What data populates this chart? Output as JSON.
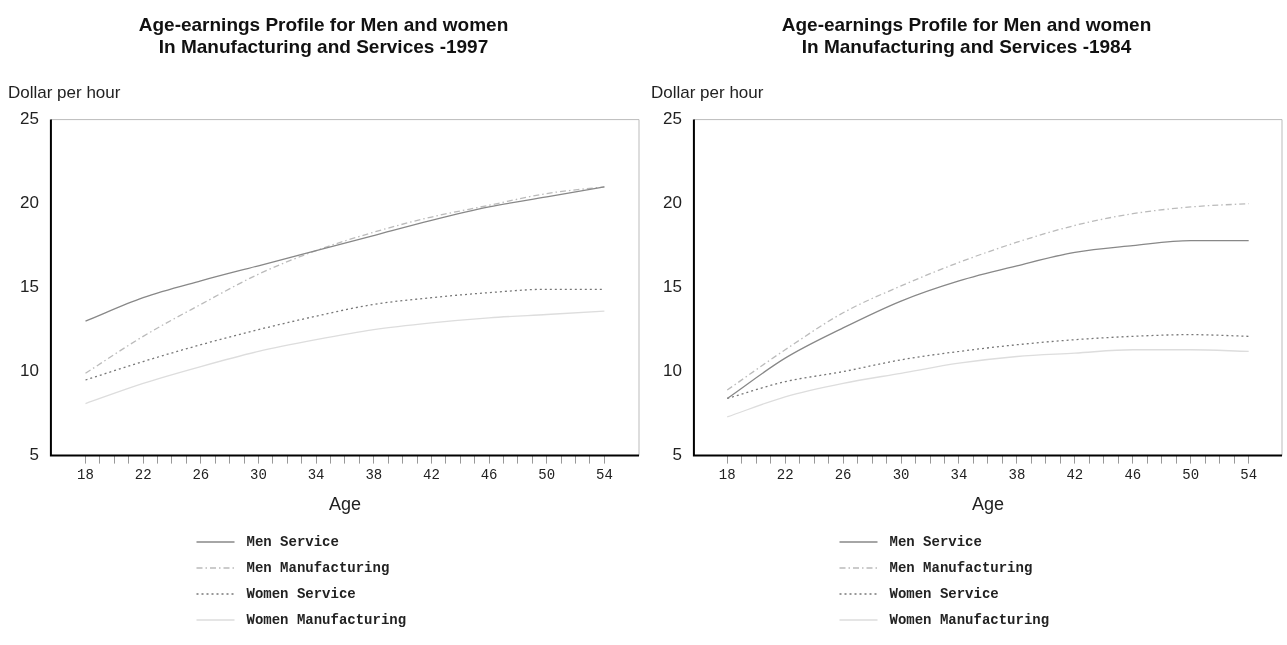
{
  "chart_data": [
    {
      "type": "line",
      "title": "Age-earnings Profile for Men and women\nIn Manufacturing and Services -1997",
      "xlabel": "Age",
      "ylabel": "Dollar per hour",
      "x": [
        18,
        22,
        26,
        30,
        34,
        38,
        42,
        46,
        50,
        54
      ],
      "series": [
        {
          "name": "Men Service",
          "color": "#888888",
          "line_style": "solid",
          "values": [
            13.0,
            14.4,
            15.4,
            16.3,
            17.2,
            18.1,
            19.0,
            19.8,
            20.4,
            21.0
          ]
        },
        {
          "name": "Men Manufacturing",
          "color": "#bbbbbb",
          "line_style": "dashed",
          "values": [
            9.9,
            12.1,
            14.0,
            15.8,
            17.2,
            18.3,
            19.2,
            19.9,
            20.6,
            21.0
          ]
        },
        {
          "name": "Women Service",
          "color": "#777777",
          "line_style": "dotted",
          "values": [
            9.5,
            10.6,
            11.6,
            12.5,
            13.3,
            14.0,
            14.4,
            14.7,
            14.9,
            14.9
          ]
        },
        {
          "name": "Women Manufacturing",
          "color": "#dddddd",
          "line_style": "solid",
          "values": [
            8.1,
            9.3,
            10.3,
            11.2,
            11.9,
            12.5,
            12.9,
            13.2,
            13.4,
            13.6
          ]
        }
      ],
      "xlim": [
        15.6,
        56.4
      ],
      "xticks": [
        18,
        {
          "value": 19,
          "label": null
        },
        {
          "value": 20,
          "label": null
        },
        {
          "value": 21,
          "label": null
        },
        22,
        {
          "value": 23,
          "label": null
        },
        {
          "value": 24,
          "label": null
        },
        {
          "value": 25,
          "label": null
        },
        26,
        {
          "value": 27,
          "label": null
        },
        {
          "value": 28,
          "label": null
        },
        {
          "value": 29,
          "label": null
        },
        30,
        {
          "value": 31,
          "label": null
        },
        {
          "value": 32,
          "label": null
        },
        {
          "value": 33,
          "label": null
        },
        34,
        {
          "value": 35,
          "label": null
        },
        {
          "value": 36,
          "label": null
        },
        {
          "value": 37,
          "label": null
        },
        38,
        {
          "value": 39,
          "label": null
        },
        {
          "value": 40,
          "label": null
        },
        {
          "value": 41,
          "label": null
        },
        42,
        {
          "value": 43,
          "label": null
        },
        {
          "value": 44,
          "label": null
        },
        {
          "value": 45,
          "label": null
        },
        46,
        {
          "value": 47,
          "label": null
        },
        {
          "value": 48,
          "label": null
        },
        {
          "value": 49,
          "label": null
        },
        50,
        {
          "value": 51,
          "label": null
        },
        {
          "value": 52,
          "label": null
        },
        {
          "value": 53,
          "label": null
        },
        54
      ],
      "ylim": [
        5,
        25
      ],
      "yticks": [
        5,
        10,
        15,
        20,
        25
      ],
      "grid": false,
      "legend": "bottom",
      "marker": "none"
    },
    {
      "type": "line",
      "title": "Age-earnings Profile for Men and women\nIn Manufacturing and Services -1984",
      "xlabel": "Age",
      "ylabel": "Dollar per hour",
      "x": [
        18,
        22,
        26,
        30,
        34,
        38,
        42,
        46,
        50,
        54
      ],
      "series": [
        {
          "name": "Men Service",
          "color": "#888888",
          "line_style": "solid",
          "values": [
            8.4,
            10.8,
            12.6,
            14.2,
            15.4,
            16.3,
            17.1,
            17.5,
            17.8,
            17.8
          ]
        },
        {
          "name": "Men Manufacturing",
          "color": "#bbbbbb",
          "line_style": "dashed",
          "values": [
            8.9,
            11.3,
            13.5,
            15.1,
            16.5,
            17.7,
            18.7,
            19.4,
            19.8,
            20.0
          ]
        },
        {
          "name": "Women Service",
          "color": "#777777",
          "line_style": "dotted",
          "values": [
            8.4,
            9.4,
            10.0,
            10.7,
            11.2,
            11.6,
            11.9,
            12.1,
            12.2,
            12.1
          ]
        },
        {
          "name": "Women Manufacturing",
          "color": "#dddddd",
          "line_style": "solid",
          "values": [
            7.3,
            8.5,
            9.3,
            9.9,
            10.5,
            10.9,
            11.1,
            11.3,
            11.3,
            11.2
          ]
        }
      ],
      "xlim": [
        15.7,
        56.3
      ],
      "xticks": [
        18,
        {
          "value": 19,
          "label": null
        },
        {
          "value": 20,
          "label": null
        },
        {
          "value": 21,
          "label": null
        },
        22,
        {
          "value": 23,
          "label": null
        },
        {
          "value": 24,
          "label": null
        },
        {
          "value": 25,
          "label": null
        },
        26,
        {
          "value": 27,
          "label": null
        },
        {
          "value": 28,
          "label": null
        },
        {
          "value": 29,
          "label": null
        },
        30,
        {
          "value": 31,
          "label": null
        },
        {
          "value": 32,
          "label": null
        },
        {
          "value": 33,
          "label": null
        },
        34,
        {
          "value": 35,
          "label": null
        },
        {
          "value": 36,
          "label": null
        },
        {
          "value": 37,
          "label": null
        },
        38,
        {
          "value": 39,
          "label": null
        },
        {
          "value": 40,
          "label": null
        },
        {
          "value": 41,
          "label": null
        },
        42,
        {
          "value": 43,
          "label": null
        },
        {
          "value": 44,
          "label": null
        },
        {
          "value": 45,
          "label": null
        },
        46,
        {
          "value": 47,
          "label": null
        },
        {
          "value": 48,
          "label": null
        },
        {
          "value": 49,
          "label": null
        },
        50,
        {
          "value": 51,
          "label": null
        },
        {
          "value": 52,
          "label": null
        },
        {
          "value": 53,
          "label": null
        },
        54
      ],
      "ylim": [
        5,
        25
      ],
      "yticks": [
        5,
        10,
        15,
        20,
        25
      ],
      "grid": false,
      "legend": "bottom",
      "marker": "none"
    }
  ]
}
